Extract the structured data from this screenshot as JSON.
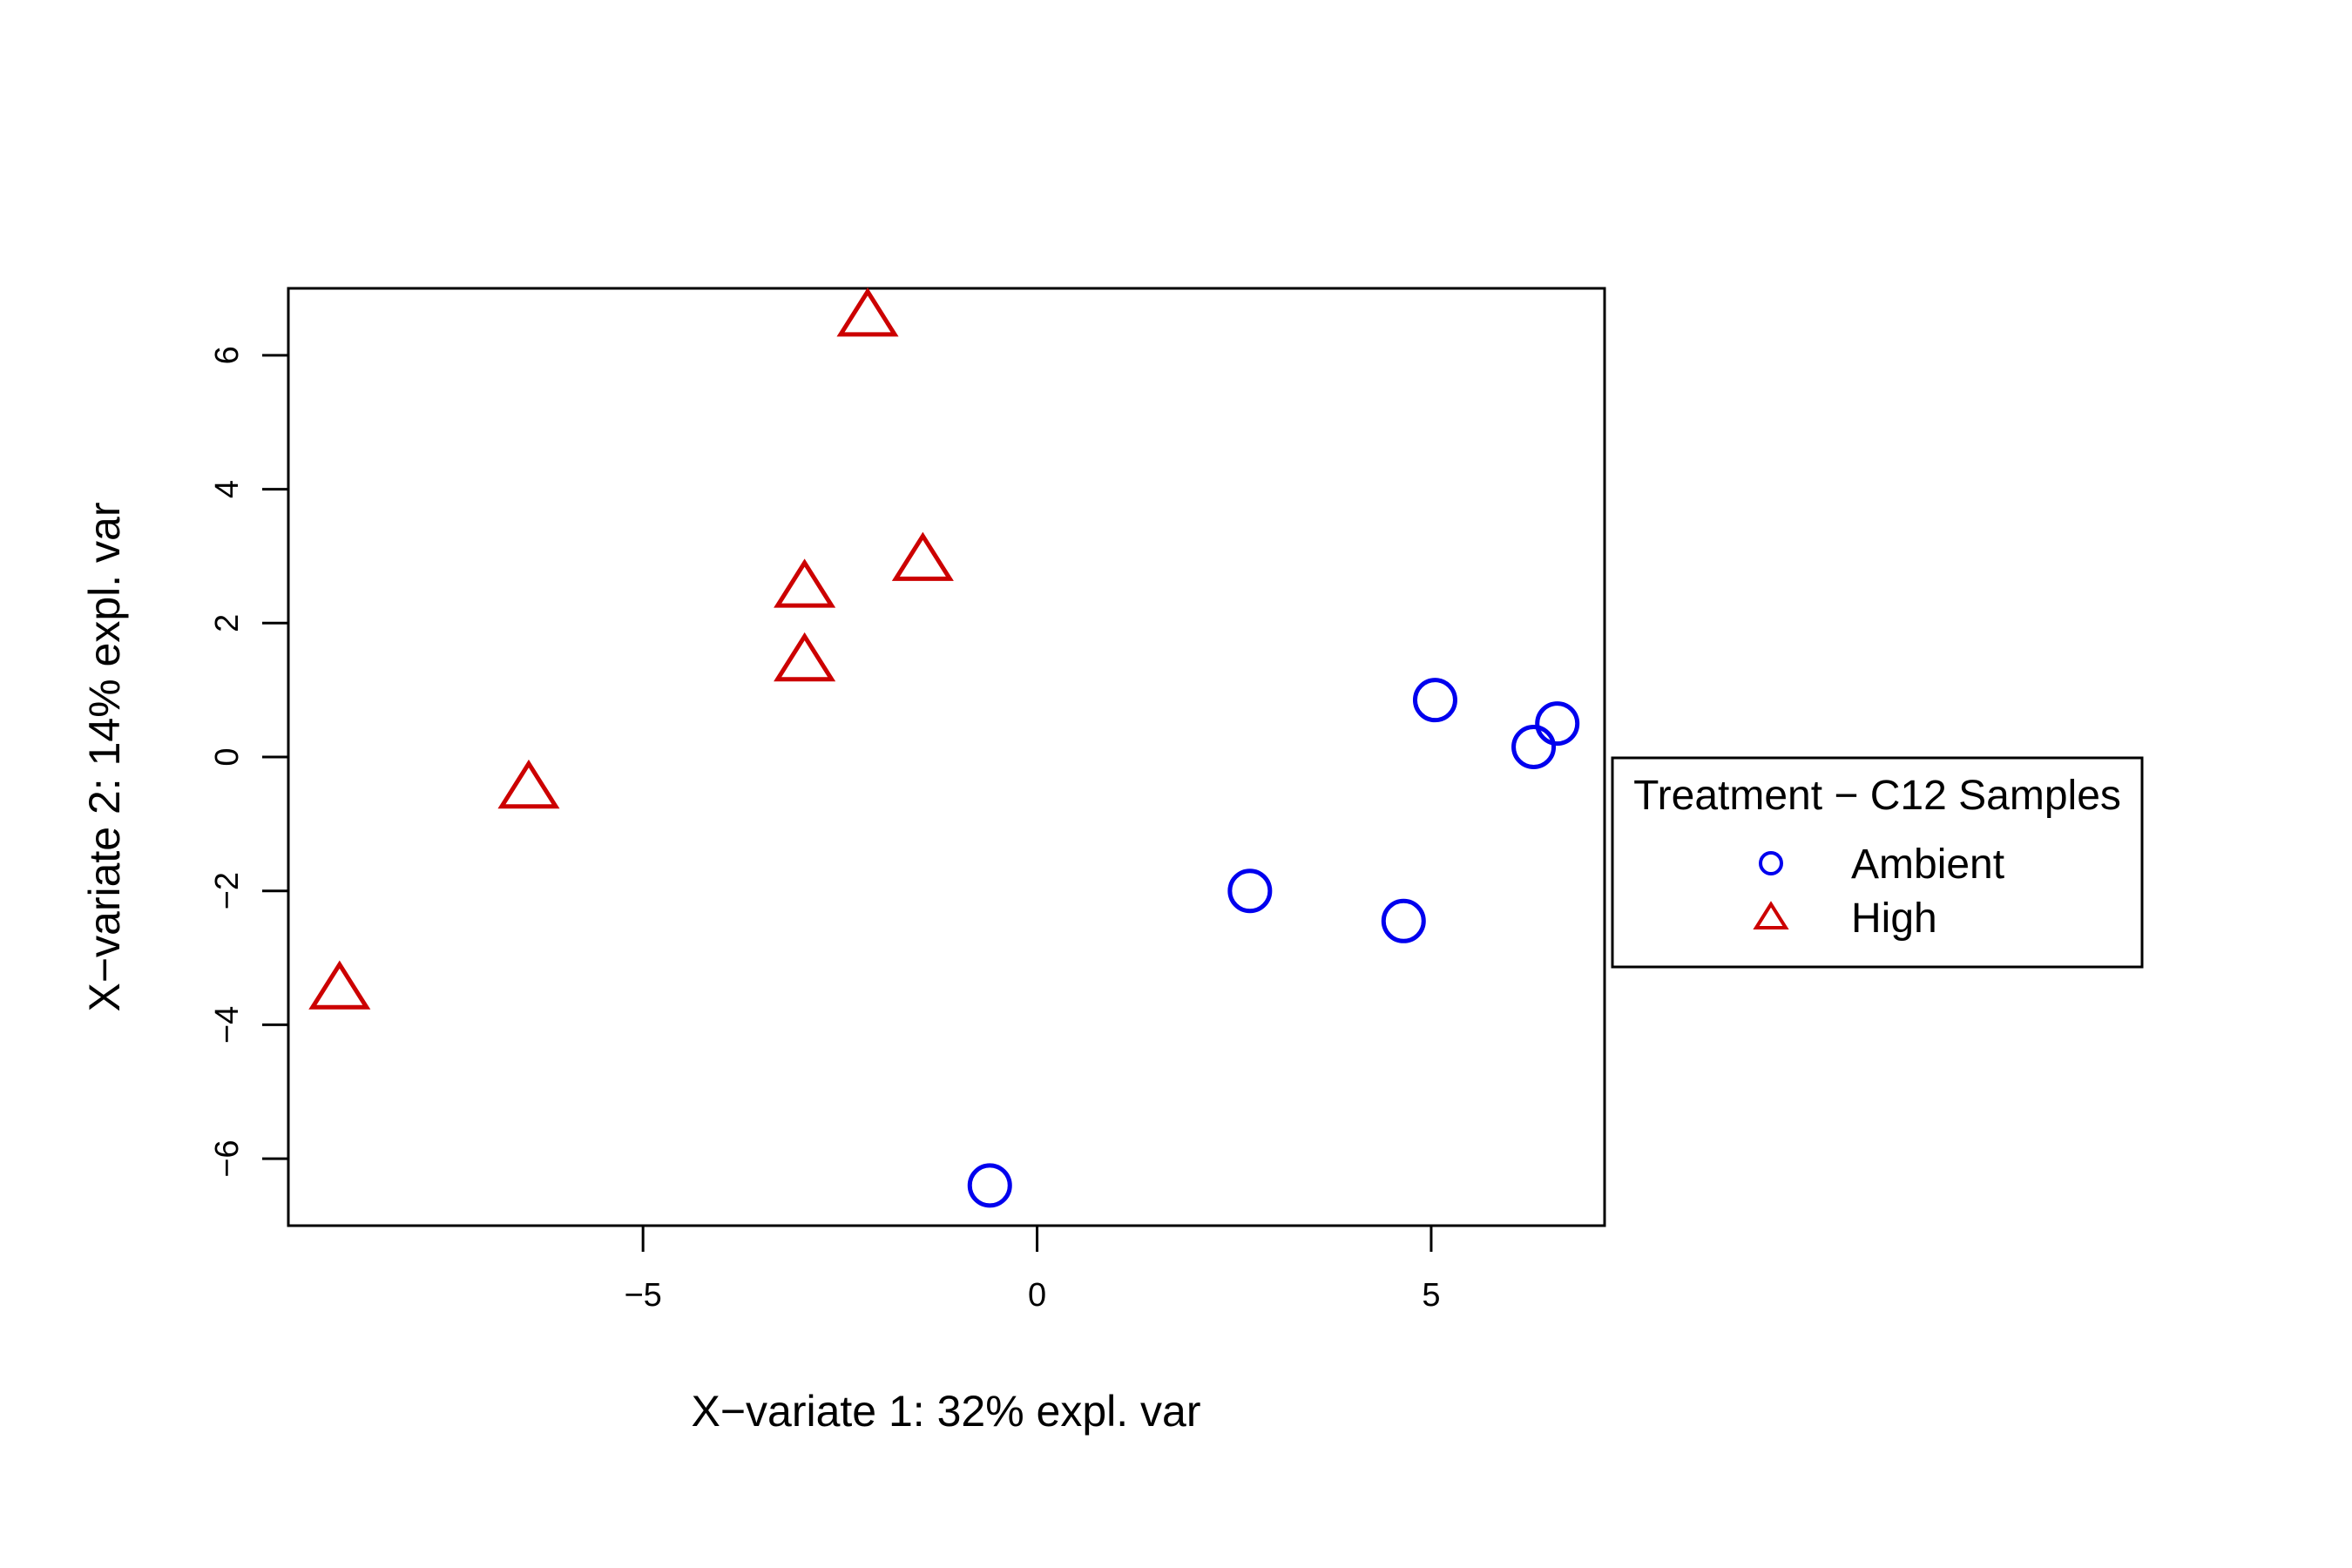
{
  "chart_data": {
    "type": "scatter",
    "title": "",
    "xlabel": "X−variate 1: 32% expl. var",
    "ylabel": "X−variate 2: 14% expl. var",
    "xlim": [
      -9.5,
      7.2
    ],
    "ylim": [
      -7,
      7
    ],
    "xticks": [
      -5,
      0,
      5
    ],
    "xtick_labels": [
      "−5",
      "0",
      "5"
    ],
    "yticks": [
      -6,
      -4,
      -2,
      0,
      2,
      4,
      6
    ],
    "ytick_labels": [
      "−6",
      "−4",
      "−2",
      "0",
      "2",
      "4",
      "6"
    ],
    "grid": false,
    "legend": {
      "title": "Treatment − C12 Samples",
      "placement": "right"
    },
    "series": [
      {
        "name": "Ambient",
        "marker": "circle",
        "color": "#0000ee",
        "x": [
          5.05,
          6.3,
          6.6,
          2.7,
          4.65,
          -0.6
        ],
        "y": [
          0.85,
          0.15,
          0.5,
          -2.0,
          -2.45,
          -6.4
        ]
      },
      {
        "name": "High",
        "marker": "triangle",
        "color": "#cc0000",
        "x": [
          -2.15,
          -2.95,
          -1.45,
          -2.95,
          -6.45,
          -8.85
        ],
        "y": [
          6.6,
          2.55,
          2.95,
          1.45,
          -0.45,
          -3.45
        ]
      }
    ]
  }
}
